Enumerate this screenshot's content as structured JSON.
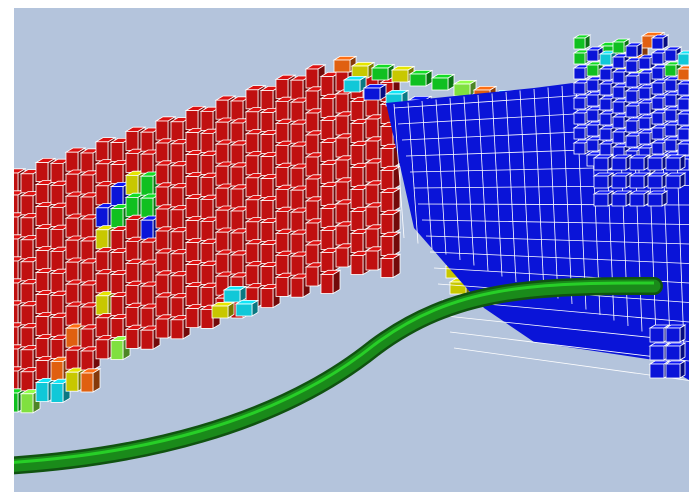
{
  "viewport": {
    "background": "#b4c4dc",
    "cell_edge_color": "#ffffff"
  },
  "colors": {
    "red": "#c01010",
    "blue": "#0a14d8",
    "cyan": "#10c8d8",
    "green": "#10c020",
    "yellow": "#c8c800",
    "orange": "#e06010",
    "light_green": "#80e040",
    "well": "#1a8a1a"
  },
  "objects": [
    {
      "name": "red-cell-cluster",
      "color": "red"
    },
    {
      "name": "blue-cell-cluster",
      "color": "blue"
    },
    {
      "name": "well-trajectory",
      "color": "well"
    }
  ]
}
